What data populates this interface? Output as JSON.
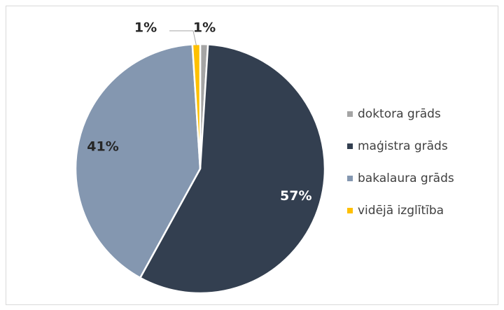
{
  "chart_data": {
    "type": "pie",
    "categories": [
      "doktora grāds",
      "maģistra grāds",
      "bakalaura grāds",
      "vidējā izglītība"
    ],
    "values": [
      1,
      57,
      41,
      1
    ],
    "value_labels": [
      "1%",
      "57%",
      "41%",
      "1%"
    ],
    "colors": [
      "#a5a5a5",
      "#333f50",
      "#8497b0",
      "#ffc000"
    ],
    "legend": "right"
  }
}
